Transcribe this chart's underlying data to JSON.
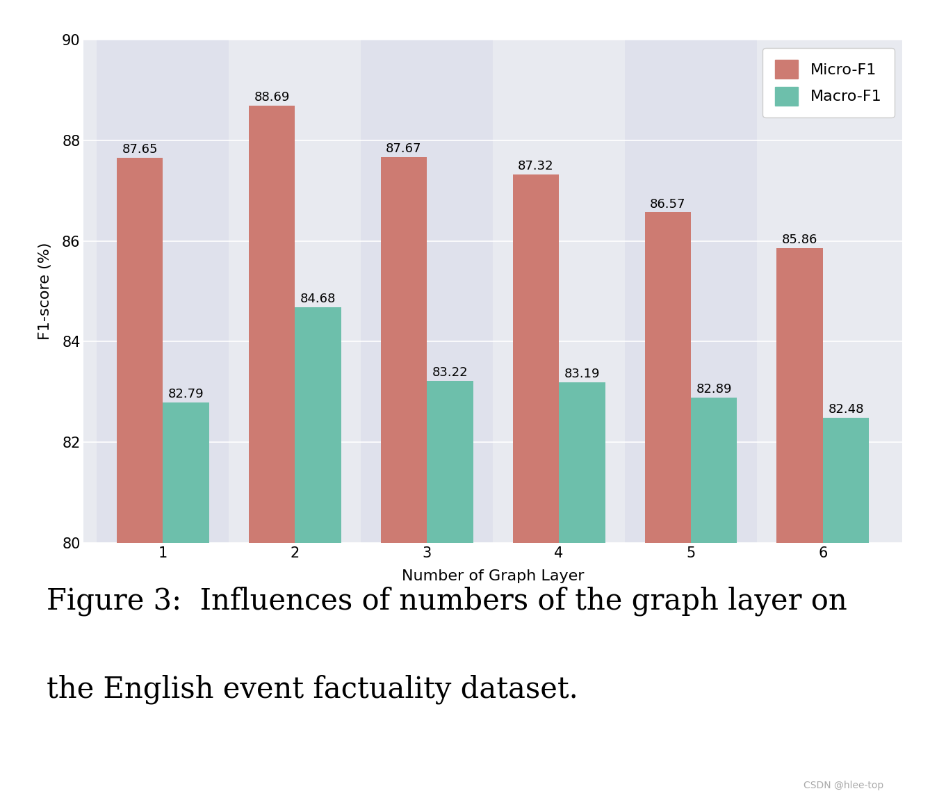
{
  "categories": [
    1,
    2,
    3,
    4,
    5,
    6
  ],
  "micro_f1": [
    87.65,
    88.69,
    87.67,
    87.32,
    86.57,
    85.86
  ],
  "macro_f1": [
    82.79,
    84.68,
    83.22,
    83.19,
    82.89,
    82.48
  ],
  "micro_color": "#cd7b72",
  "macro_color": "#6dbfab",
  "background_color": "#e8eaf0",
  "strip_color": "#dfe1ec",
  "xlabel": "Number of Graph Layer",
  "ylabel": "F1-score (%)",
  "ylim": [
    80,
    90
  ],
  "yticks": [
    80,
    82,
    84,
    86,
    88,
    90
  ],
  "legend_micro": "Micro-F1",
  "legend_macro": "Macro-F1",
  "bar_width": 0.35,
  "caption_line1": "Figure 3:  Influences of numbers of the graph layer on",
  "caption_line2": "the English event factuality dataset.",
  "watermark": "CSDN @hlee-top"
}
